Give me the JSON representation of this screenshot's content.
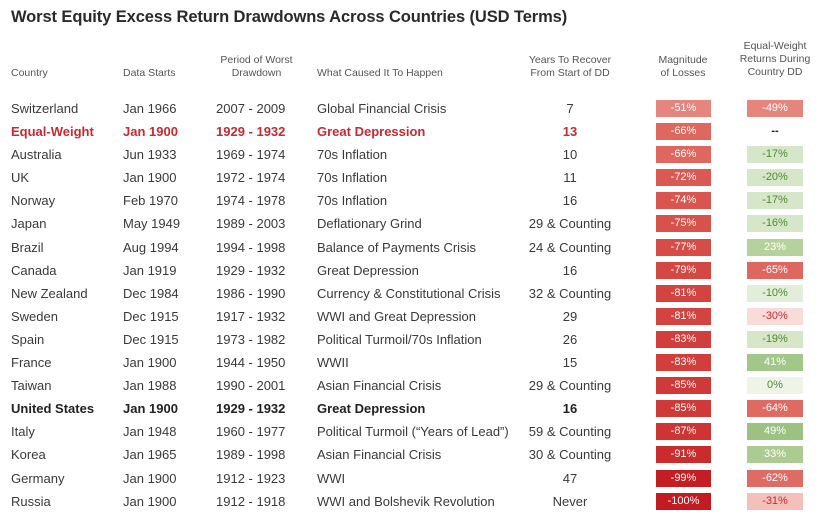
{
  "title": "Worst Equity Excess Return Drawdowns Across Countries (USD Terms)",
  "headers": {
    "country": "Country",
    "data_starts": "Data Starts",
    "period": [
      "Period of Worst",
      "Drawdown"
    ],
    "cause": "What Caused It To Happen",
    "years": [
      "Years To Recover",
      "From Start of DD"
    ],
    "magnitude": [
      "Magnitude",
      "of Losses"
    ],
    "equal_weight": [
      "Equal-Weight",
      "Returns During",
      "Country DD"
    ]
  },
  "rows": [
    {
      "country": "Switzerland",
      "start": "Jan 1966",
      "period": "2007 - 2009",
      "cause": "Global Financial Crisis",
      "years": "7",
      "magnitude": "-51%",
      "ew": "-49%",
      "style": "normal",
      "mag_color": "#e5857d",
      "ew_color": "#e5857d"
    },
    {
      "country": "Equal-Weight",
      "start": "Jan 1900",
      "period": "1929 - 1932",
      "cause": "Great Depression",
      "years": "13",
      "magnitude": "-66%",
      "ew": "--",
      "style": "red",
      "mag_color": "#de675f",
      "ew_color": "#ffffff"
    },
    {
      "country": "Australia",
      "start": "Jun 1933",
      "period": "1969 - 1974",
      "cause": "70s Inflation",
      "years": "10",
      "magnitude": "-66%",
      "ew": "-17%",
      "style": "normal",
      "mag_color": "#de675f",
      "ew_color": "#d6e6c8"
    },
    {
      "country": "UK",
      "start": "Jan 1900",
      "period": "1972 - 1974",
      "cause": "70s Inflation",
      "years": "11",
      "magnitude": "-72%",
      "ew": "-20%",
      "style": "normal",
      "mag_color": "#da5a53",
      "ew_color": "#d6e6c8"
    },
    {
      "country": "Norway",
      "start": "Feb 1970",
      "period": "1974 - 1978",
      "cause": "70s Inflation",
      "years": "16",
      "magnitude": "-74%",
      "ew": "-17%",
      "style": "normal",
      "mag_color": "#d9554f",
      "ew_color": "#d6e6c8"
    },
    {
      "country": "Japan",
      "start": "May 1949",
      "period": "1989 - 2003",
      "cause": "Deflationary Grind",
      "years": "29 & Counting",
      "magnitude": "-75%",
      "ew": "-16%",
      "style": "normal",
      "mag_color": "#d8524c",
      "ew_color": "#d6e6c8"
    },
    {
      "country": "Brazil",
      "start": "Aug 1994",
      "period": "1994 - 1998",
      "cause": "Balance of Payments Crisis",
      "years": "24 & Counting",
      "magnitude": "-77%",
      "ew": "23%",
      "style": "normal",
      "mag_color": "#d64d48",
      "ew_color": "#b6d29c"
    },
    {
      "country": "Canada",
      "start": "Jan 1919",
      "period": "1929 - 1932",
      "cause": "Great Depression",
      "years": "16",
      "magnitude": "-79%",
      "ew": "-65%",
      "style": "normal",
      "mag_color": "#d44844",
      "ew_color": "#de675f"
    },
    {
      "country": "New Zealand",
      "start": "Dec 1984",
      "period": "1986 - 1990",
      "cause": "Currency & Constitutional Crisis",
      "years": "32 & Counting",
      "magnitude": "-81%",
      "ew": "-10%",
      "style": "normal",
      "mag_color": "#d3433f",
      "ew_color": "#e2eed8"
    },
    {
      "country": "Sweden",
      "start": "Dec 1915",
      "period": "1917 - 1932",
      "cause": "WWI and Great Depression",
      "years": "29",
      "magnitude": "-81%",
      "ew": "-30%",
      "style": "normal",
      "mag_color": "#d3433f",
      "ew_color": "#f9dcd8"
    },
    {
      "country": "Spain",
      "start": "Dec 1915",
      "period": "1973 - 1982",
      "cause": "Political Turmoil/70s Inflation",
      "years": "26",
      "magnitude": "-83%",
      "ew": "-19%",
      "style": "normal",
      "mag_color": "#d13e3b",
      "ew_color": "#d6e6c8"
    },
    {
      "country": "France",
      "start": "Jan 1900",
      "period": "1944 - 1950",
      "cause": "WWII",
      "years": "15",
      "magnitude": "-83%",
      "ew": "41%",
      "style": "normal",
      "mag_color": "#d13e3b",
      "ew_color": "#a3c689"
    },
    {
      "country": "Taiwan",
      "start": "Jan 1988",
      "period": "1990 - 2001",
      "cause": "Asian Financial Crisis",
      "years": "29 & Counting",
      "magnitude": "-85%",
      "ew": "0%",
      "style": "normal",
      "mag_color": "#cf3937",
      "ew_color": "#eef5e8"
    },
    {
      "country": "United States",
      "start": "Jan 1900",
      "period": "1929 - 1932",
      "cause": "Great Depression",
      "years": "16",
      "magnitude": "-85%",
      "ew": "-64%",
      "style": "bold",
      "mag_color": "#cf3937",
      "ew_color": "#df6a62"
    },
    {
      "country": "Italy",
      "start": "Jan 1948",
      "period": "1960 - 1977",
      "cause": "Political Turmoil (“Years of Lead”)",
      "years": "59 & Counting",
      "magnitude": "-87%",
      "ew": "49%",
      "style": "normal",
      "mag_color": "#cd3433",
      "ew_color": "#9cc283"
    },
    {
      "country": "Korea",
      "start": "Jan 1965",
      "period": "1989 - 1998",
      "cause": "Asian Financial Crisis",
      "years": "30 & Counting",
      "magnitude": "-91%",
      "ew": "33%",
      "style": "normal",
      "mag_color": "#ca2b2c",
      "ew_color": "#abcb92"
    },
    {
      "country": "Germany",
      "start": "Jan 1900",
      "period": "1912 - 1923",
      "cause": "WWI",
      "years": "47",
      "magnitude": "-99%",
      "ew": "-62%",
      "style": "normal",
      "mag_color": "#c41d24",
      "ew_color": "#df6c64"
    },
    {
      "country": "Russia",
      "start": "Jan 1900",
      "period": "1912 - 1918",
      "cause": "WWI and Bolshevik Revolution",
      "years": "Never",
      "magnitude": "-100%",
      "ew": "-31%",
      "style": "normal",
      "mag_color": "#c21b22",
      "ew_color": "#f4c0ba"
    }
  ]
}
